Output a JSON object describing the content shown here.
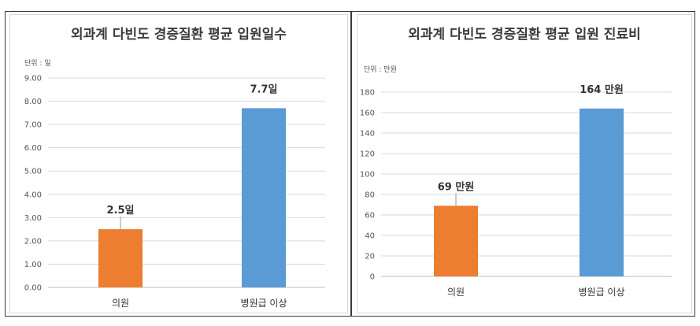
{
  "chart_data": [
    {
      "type": "bar",
      "title": "외과계 다빈도 경증질환 평균 입원일수",
      "unit_label": "단위 : 일",
      "categories": [
        "의원",
        "병원급 이상"
      ],
      "values": [
        2.5,
        7.7
      ],
      "data_labels": [
        "2.5일",
        "7.7일"
      ],
      "colors": [
        "#ed7d31",
        "#5b9bd5"
      ],
      "ylim": [
        0,
        9
      ],
      "yticks": [
        0,
        1,
        2,
        3,
        4,
        5,
        6,
        7,
        8,
        9
      ],
      "ytick_labels": [
        "0.00",
        "1.00",
        "2.00",
        "3.00",
        "4.00",
        "5.00",
        "6.00",
        "7.00",
        "8.00",
        "9.00"
      ],
      "grid": true
    },
    {
      "type": "bar",
      "title": "외과계 다빈도 경증질환 평균 입원 진료비",
      "unit_label": "단위 : 만원",
      "categories": [
        "의원",
        "병원급 이상"
      ],
      "values": [
        69,
        164
      ],
      "data_labels": [
        "69 만원",
        "164 만원"
      ],
      "colors": [
        "#ed7d31",
        "#5b9bd5"
      ],
      "ylim": [
        0,
        180
      ],
      "yticks": [
        0,
        20,
        40,
        60,
        80,
        100,
        120,
        140,
        160,
        180
      ],
      "ytick_labels": [
        "0",
        "20",
        "40",
        "60",
        "80",
        "100",
        "120",
        "140",
        "160",
        "180"
      ],
      "grid": true
    }
  ]
}
